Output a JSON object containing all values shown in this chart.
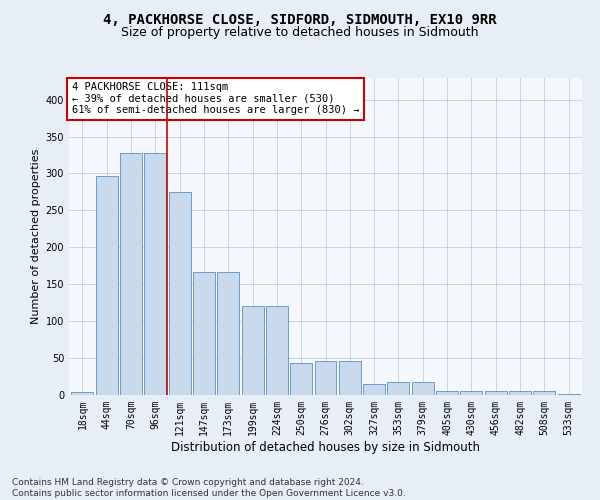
{
  "title": "4, PACKHORSE CLOSE, SIDFORD, SIDMOUTH, EX10 9RR",
  "subtitle": "Size of property relative to detached houses in Sidmouth",
  "xlabel": "Distribution of detached houses by size in Sidmouth",
  "ylabel": "Number of detached properties",
  "bar_labels": [
    "18sqm",
    "44sqm",
    "70sqm",
    "96sqm",
    "121sqm",
    "147sqm",
    "173sqm",
    "199sqm",
    "224sqm",
    "250sqm",
    "276sqm",
    "302sqm",
    "327sqm",
    "353sqm",
    "379sqm",
    "405sqm",
    "430sqm",
    "456sqm",
    "482sqm",
    "508sqm",
    "533sqm"
  ],
  "bar_values": [
    4,
    297,
    328,
    328,
    275,
    167,
    167,
    120,
    120,
    43,
    46,
    46,
    15,
    18,
    18,
    5,
    5,
    6,
    6,
    5,
    1
  ],
  "bar_color": "#c8d9ec",
  "bar_edge_color": "#5b8fc3",
  "vline_x": 3.5,
  "vline_color": "#cc0000",
  "annotation_text": "4 PACKHORSE CLOSE: 111sqm\n← 39% of detached houses are smaller (530)\n61% of semi-detached houses are larger (830) →",
  "annotation_box_color": "#ffffff",
  "annotation_box_edge": "#cc0000",
  "ylim": [
    0,
    430
  ],
  "yticks": [
    0,
    50,
    100,
    150,
    200,
    250,
    300,
    350,
    400
  ],
  "bg_color": "#e8eef5",
  "plot_bg_color": "#f4f7fc",
  "footer": "Contains HM Land Registry data © Crown copyright and database right 2024.\nContains public sector information licensed under the Open Government Licence v3.0.",
  "title_fontsize": 10,
  "subtitle_fontsize": 9,
  "xlabel_fontsize": 8.5,
  "ylabel_fontsize": 8,
  "tick_fontsize": 7,
  "footer_fontsize": 6.5,
  "annot_fontsize": 7.5
}
